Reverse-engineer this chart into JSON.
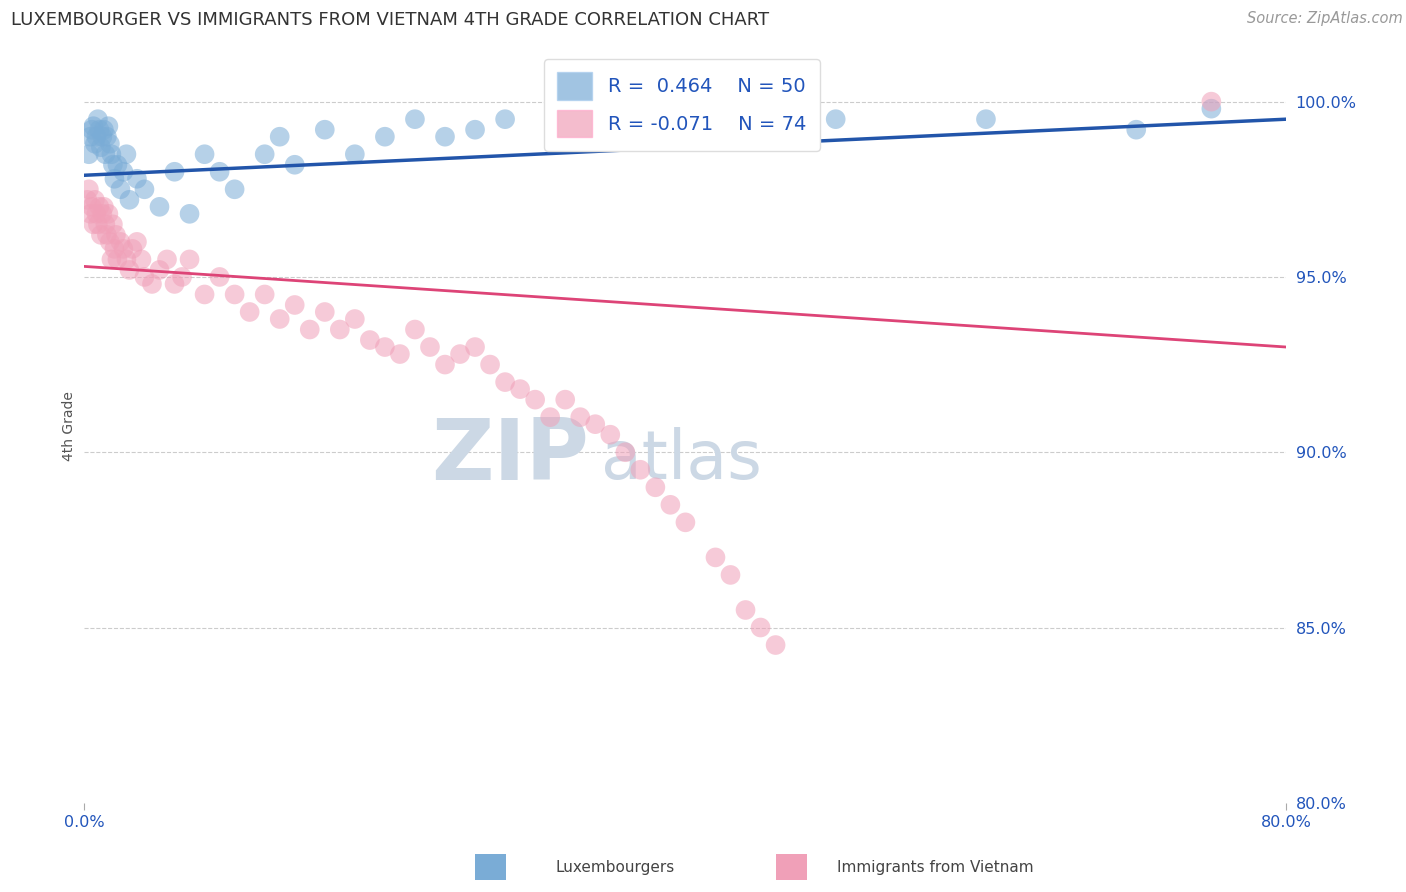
{
  "title": "LUXEMBOURGER VS IMMIGRANTS FROM VIETNAM 4TH GRADE CORRELATION CHART",
  "source": "Source: ZipAtlas.com",
  "ylabel": "4th Grade",
  "x_min": 0.0,
  "x_max": 80.0,
  "y_min": 80.0,
  "y_max": 101.5,
  "blue_R": 0.464,
  "blue_N": 50,
  "pink_R": -0.071,
  "pink_N": 74,
  "blue_color": "#7aacd6",
  "pink_color": "#f0a0b8",
  "blue_line_color": "#2255aa",
  "pink_line_color": "#dd4477",
  "watermark_color": "#ccd8e5",
  "blue_line_x0": 0.0,
  "blue_line_y0": 97.9,
  "blue_line_x1": 80.0,
  "blue_line_y1": 99.5,
  "pink_line_x0": 0.0,
  "pink_line_y0": 95.3,
  "pink_line_x1": 80.0,
  "pink_line_y1": 93.0,
  "blue_scatter_x": [
    0.3,
    0.4,
    0.5,
    0.6,
    0.7,
    0.8,
    0.9,
    1.0,
    1.1,
    1.2,
    1.3,
    1.4,
    1.5,
    1.6,
    1.7,
    1.8,
    1.9,
    2.0,
    2.2,
    2.4,
    2.6,
    2.8,
    3.0,
    3.5,
    4.0,
    5.0,
    6.0,
    7.0,
    8.0,
    9.0,
    10.0,
    12.0,
    13.0,
    14.0,
    16.0,
    18.0,
    20.0,
    22.0,
    24.0,
    26.0,
    28.0,
    32.0,
    35.0,
    38.0,
    40.0,
    45.0,
    50.0,
    60.0,
    70.0,
    75.0
  ],
  "blue_scatter_y": [
    98.5,
    99.0,
    99.2,
    99.3,
    98.8,
    99.0,
    99.5,
    99.2,
    98.7,
    99.0,
    99.2,
    98.5,
    99.0,
    99.3,
    98.8,
    98.5,
    98.2,
    97.8,
    98.2,
    97.5,
    98.0,
    98.5,
    97.2,
    97.8,
    97.5,
    97.0,
    98.0,
    96.8,
    98.5,
    98.0,
    97.5,
    98.5,
    99.0,
    98.2,
    99.2,
    98.5,
    99.0,
    99.5,
    99.0,
    99.2,
    99.5,
    99.0,
    99.5,
    99.2,
    99.8,
    99.0,
    99.5,
    99.5,
    99.2,
    99.8
  ],
  "pink_scatter_x": [
    0.2,
    0.3,
    0.4,
    0.5,
    0.6,
    0.7,
    0.8,
    0.9,
    1.0,
    1.1,
    1.2,
    1.3,
    1.4,
    1.5,
    1.6,
    1.7,
    1.8,
    1.9,
    2.0,
    2.1,
    2.2,
    2.4,
    2.6,
    2.8,
    3.0,
    3.2,
    3.5,
    3.8,
    4.0,
    4.5,
    5.0,
    5.5,
    6.0,
    6.5,
    7.0,
    8.0,
    9.0,
    10.0,
    11.0,
    12.0,
    13.0,
    14.0,
    15.0,
    16.0,
    17.0,
    18.0,
    19.0,
    20.0,
    21.0,
    22.0,
    23.0,
    24.0,
    25.0,
    26.0,
    27.0,
    28.0,
    29.0,
    30.0,
    31.0,
    32.0,
    33.0,
    34.0,
    35.0,
    36.0,
    37.0,
    38.0,
    39.0,
    40.0,
    42.0,
    43.0,
    44.0,
    45.0,
    46.0,
    75.0
  ],
  "pink_scatter_y": [
    97.2,
    97.5,
    96.8,
    97.0,
    96.5,
    97.2,
    96.8,
    96.5,
    97.0,
    96.2,
    96.8,
    97.0,
    96.5,
    96.2,
    96.8,
    96.0,
    95.5,
    96.5,
    95.8,
    96.2,
    95.5,
    96.0,
    95.8,
    95.5,
    95.2,
    95.8,
    96.0,
    95.5,
    95.0,
    94.8,
    95.2,
    95.5,
    94.8,
    95.0,
    95.5,
    94.5,
    95.0,
    94.5,
    94.0,
    94.5,
    93.8,
    94.2,
    93.5,
    94.0,
    93.5,
    93.8,
    93.2,
    93.0,
    92.8,
    93.5,
    93.0,
    92.5,
    92.8,
    93.0,
    92.5,
    92.0,
    91.8,
    91.5,
    91.0,
    91.5,
    91.0,
    90.8,
    90.5,
    90.0,
    89.5,
    89.0,
    88.5,
    88.0,
    87.0,
    86.5,
    85.5,
    85.0,
    84.5,
    100.0
  ]
}
